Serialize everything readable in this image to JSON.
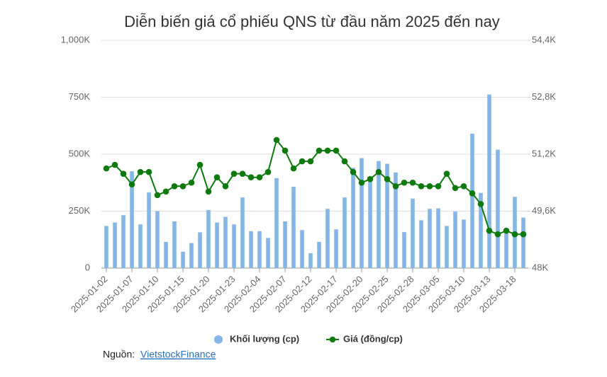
{
  "chart_data": {
    "type": "combo",
    "title": "Diễn biến giá cổ phiếu QNS từ đầu năm 2025 đến nay",
    "categories": [
      "2025-01-02",
      null,
      null,
      "2025-01-07",
      null,
      null,
      "2025-01-10",
      null,
      null,
      "2025-01-15",
      null,
      null,
      "2025-01-20",
      null,
      null,
      "2025-01-23",
      null,
      null,
      "2025-02-04",
      null,
      null,
      "2025-02-07",
      null,
      null,
      "2025-02-12",
      null,
      null,
      "2025-02-17",
      null,
      null,
      "2025-02-20",
      null,
      null,
      "2025-02-25",
      null,
      null,
      "2025-02-28",
      null,
      null,
      "2025-03-05",
      null,
      null,
      "2025-03-10",
      null,
      null,
      "2025-03-13",
      null,
      null,
      "2025-03-18",
      null
    ],
    "series": [
      {
        "name": "Khối lượng (cp)",
        "type": "bar",
        "color": "#84b7e8",
        "values": [
          185000,
          200000,
          232000,
          425000,
          192000,
          332000,
          250000,
          115000,
          205000,
          72000,
          110000,
          157000,
          255000,
          200000,
          225000,
          192000,
          310000,
          162000,
          162000,
          132000,
          395000,
          205000,
          357000,
          167000,
          65000,
          115000,
          260000,
          170000,
          310000,
          440000,
          483000,
          400000,
          470000,
          458000,
          420000,
          158000,
          305000,
          210000,
          260000,
          262000,
          185000,
          248000,
          213000,
          590000,
          330000,
          762000,
          520000,
          170000,
          313000,
          222000
        ]
      },
      {
        "name": "Giá (đồng/cp)",
        "type": "line",
        "axis": "y2",
        "color": "#0e7a0e",
        "values": [
          50800,
          50900,
          50650,
          50350,
          50700,
          50700,
          50050,
          50150,
          50300,
          50300,
          50400,
          50900,
          50150,
          50550,
          50300,
          50650,
          50650,
          50550,
          50550,
          50700,
          51600,
          51300,
          50800,
          51000,
          51000,
          51300,
          51300,
          51300,
          51000,
          50700,
          50400,
          50500,
          50700,
          50500,
          50300,
          50400,
          50400,
          50300,
          50300,
          50300,
          50650,
          50250,
          50300,
          50100,
          49800,
          49050,
          48950,
          49050,
          48950,
          48950
        ]
      }
    ],
    "ylim": [
      0,
      1000000
    ],
    "yticks": [
      0,
      {
        "value": 250000,
        "label": "250K"
      },
      {
        "value": 500000,
        "label": "500K"
      },
      {
        "value": 750000,
        "label": "750K"
      },
      {
        "value": 1000000,
        "label": "1,000K"
      }
    ],
    "y2lim": [
      48000,
      54400
    ],
    "y2ticks": [
      {
        "value": 48000,
        "label": "48K"
      },
      {
        "value": 49600,
        "label": "49,6K"
      },
      {
        "value": 51200,
        "label": "51,2K"
      },
      {
        "value": 52800,
        "label": "52,8K"
      },
      {
        "value": 54400,
        "label": "54,4K"
      }
    ],
    "grid": true,
    "source_label": "Nguồn:",
    "source": "VietstockFinance"
  }
}
